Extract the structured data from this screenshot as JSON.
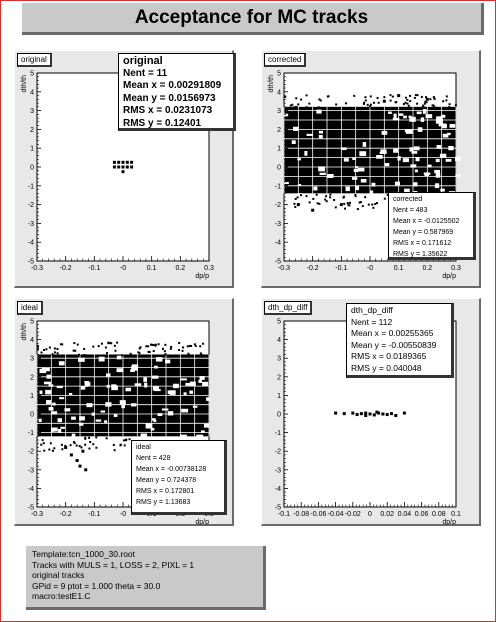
{
  "title": "Acceptance for MC tracks",
  "info_lines": [
    "Template:tcn_1000_30.root",
    "Tracks with  MULS = 1, LOSS = 2, PIXL = 1",
    "original tracks",
    "GPid =  9   ptot =  1.000  theta =  30.0",
    "macro:testE1.C"
  ],
  "colors": {
    "frame": "#d63030",
    "pad": "#e8e8e8",
    "titlebox": "#c9c9c9",
    "marker": "#000000"
  },
  "chart_data": [
    {
      "type": "scatter",
      "name": "original",
      "xlabel": "dp/p",
      "ylabel": "dth/th",
      "xlim": [
        -0.3,
        0.3
      ],
      "ylim": [
        -5,
        5
      ],
      "xticks": [
        "-0.3",
        "-0.2",
        "-0.1",
        "-0",
        "0.1",
        "0.2",
        "0.3"
      ],
      "yticks": [
        "-5",
        "-4",
        "-3",
        "-2",
        "-1",
        "0",
        "1",
        "2",
        "3",
        "4",
        "5"
      ],
      "stats": [
        {
          "label": "Nent",
          "value": "11"
        },
        {
          "label": "Mean x",
          "value": "0.00291809"
        },
        {
          "label": "Mean y",
          "value": "0.0156973"
        },
        {
          "label": "RMS x ",
          "value": "0.0231073"
        },
        {
          "label": "RMS y ",
          "value": "0.12401"
        }
      ],
      "points": [
        [
          -0.03,
          0.25
        ],
        [
          -0.015,
          0.25
        ],
        [
          0.0,
          0.25
        ],
        [
          0.015,
          0.25
        ],
        [
          0.03,
          0.25
        ],
        [
          -0.03,
          0.0
        ],
        [
          -0.015,
          0.0
        ],
        [
          0.0,
          0.0
        ],
        [
          0.015,
          0.0
        ],
        [
          0.03,
          0.0
        ],
        [
          0.0,
          -0.25
        ]
      ]
    },
    {
      "type": "scatter",
      "name": "corrected",
      "xlabel": "dp/p",
      "ylabel": "dth/th",
      "xlim": [
        -0.3,
        0.3
      ],
      "ylim": [
        -5,
        5
      ],
      "xticks": [
        "-0.3",
        "-0.2",
        "-0.1",
        "-0",
        "0.1",
        "0.2",
        "0.3"
      ],
      "yticks": [
        "-5",
        "-4",
        "-3",
        "-2",
        "-1",
        "0",
        "1",
        "2",
        "3",
        "4",
        "5"
      ],
      "stats": [
        {
          "label": "Nent",
          "value": "483"
        },
        {
          "label": "Mean x",
          "value": "-0.0125502"
        },
        {
          "label": "Mean y",
          "value": "0.587969"
        },
        {
          "label": "RMS x ",
          "value": "0.171612"
        },
        {
          "label": "RMS y ",
          "value": "1.35622"
        }
      ],
      "dense_region": {
        "x": [
          -0.3,
          0.3
        ],
        "y": [
          -1.4,
          3.2
        ]
      },
      "points": [
        [
          0.1,
          3.8
        ],
        [
          0.2,
          3.6
        ],
        [
          0.05,
          3.5
        ],
        [
          -0.25,
          -2.0
        ],
        [
          -0.2,
          -2.3
        ],
        [
          -0.1,
          -2.0
        ]
      ]
    },
    {
      "type": "scatter",
      "name": "ideal",
      "xlabel": "dp/p",
      "ylabel": "dth/th",
      "xlim": [
        -0.3,
        0.3
      ],
      "ylim": [
        -5,
        5
      ],
      "xticks": [
        "-0.3",
        "-0.2",
        "-0.1",
        "-0",
        "0.1",
        "0.2",
        "0.3"
      ],
      "yticks": [
        "-5",
        "-4",
        "-3",
        "-2",
        "-1",
        "0",
        "1",
        "2",
        "3",
        "4",
        "5"
      ],
      "stats": [
        {
          "label": "Nent",
          "value": "428"
        },
        {
          "label": "Mean x",
          "value": "-0.00738128"
        },
        {
          "label": "Mean y",
          "value": "0.724378"
        },
        {
          "label": "RMS x ",
          "value": "0.172801"
        },
        {
          "label": "RMS y ",
          "value": "1.13683"
        }
      ],
      "dense_region": {
        "x": [
          -0.3,
          0.3
        ],
        "y": [
          -1.2,
          3.2
        ]
      },
      "points": [
        [
          -0.2,
          -1.8
        ],
        [
          -0.18,
          -2.2
        ],
        [
          -0.16,
          -2.5
        ],
        [
          -0.15,
          -2.8
        ],
        [
          -0.13,
          -3.0
        ],
        [
          -0.14,
          -2.0
        ]
      ]
    },
    {
      "type": "scatter",
      "name": "dth_dp_diff",
      "xlabel": "dp/p",
      "ylabel": "",
      "xlim": [
        -0.1,
        0.1
      ],
      "ylim": [
        -5,
        5
      ],
      "xticks": [
        "-0.1",
        "-0.08",
        "-0.06",
        "-0.04",
        "-0.02",
        "0",
        "0.02",
        "0.04",
        "0.06",
        "0.08",
        "0.1"
      ],
      "yticks": [
        "-5",
        "-4",
        "-3",
        "-2",
        "-1",
        "0",
        "1",
        "2",
        "3",
        "4",
        "5"
      ],
      "stats": [
        {
          "label": "Nent",
          "value": "112"
        },
        {
          "label": "Mean x",
          "value": "0.00255365"
        },
        {
          "label": "Mean y",
          "value": "-0.00550839"
        },
        {
          "label": "RMS x",
          "value": "0.0189365"
        },
        {
          "label": "RMS y",
          "value": "0.040048"
        }
      ],
      "points": [
        [
          -0.04,
          0.05
        ],
        [
          -0.03,
          0.02
        ],
        [
          -0.02,
          0.05
        ],
        [
          -0.015,
          -0.03
        ],
        [
          -0.01,
          0.02
        ],
        [
          -0.005,
          0.05
        ],
        [
          0.0,
          0.0
        ],
        [
          0.005,
          -0.05
        ],
        [
          0.01,
          0.05
        ],
        [
          0.015,
          0.0
        ],
        [
          0.02,
          -0.03
        ],
        [
          0.025,
          0.02
        ],
        [
          0.03,
          -0.08
        ],
        [
          0.04,
          0.05
        ],
        [
          -0.005,
          -0.08
        ],
        [
          0.008,
          0.1
        ]
      ]
    }
  ]
}
